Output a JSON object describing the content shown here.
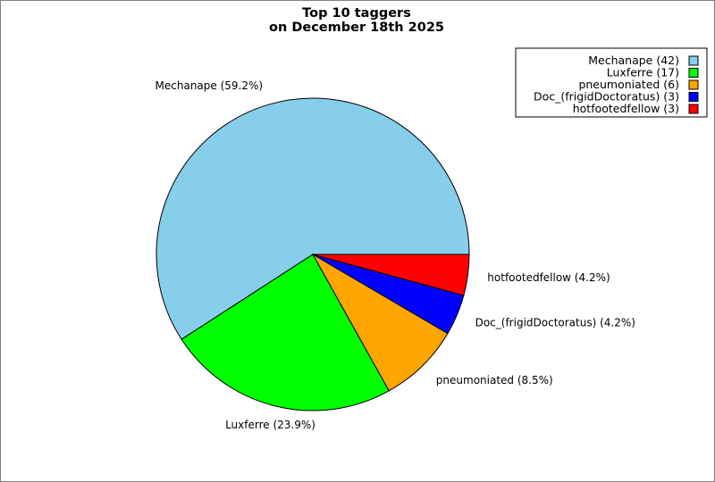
{
  "chart_data": {
    "type": "pie",
    "title": "Top 10 taggers",
    "subtitle": "on December 18th 2025",
    "legend_position": "top-right",
    "slices": [
      {
        "name": "Mechanape",
        "value": 42,
        "percent_label": "59.2%",
        "color": "#87ceeb"
      },
      {
        "name": "Luxferre",
        "value": 17,
        "percent_label": "23.9%",
        "color": "#00ff00"
      },
      {
        "name": "pneumoniated",
        "value": 6,
        "percent_label": "8.5%",
        "color": "#ffa500"
      },
      {
        "name": "Doc_(frigidDoctoratus)",
        "value": 3,
        "percent_label": "4.2%",
        "color": "#0000ff"
      },
      {
        "name": "hotfootedfellow",
        "value": 3,
        "percent_label": "4.2%",
        "color": "#ff0000"
      }
    ]
  },
  "colors": {
    "background": "#ffffff",
    "frame": "#000000",
    "outline": "#000000"
  }
}
